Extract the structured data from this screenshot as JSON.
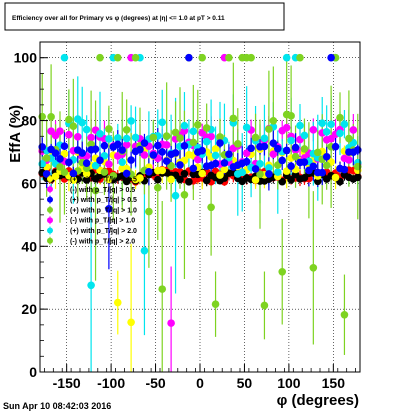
{
  "chart_data": {
    "type": "scatter",
    "title": "Efficiency over all for Primary vs φ (degrees) at |η| <= 1.0 at pT > 0.11",
    "xlabel": "φ (degrees)",
    "ylabel": "EffA (%)",
    "xlim": [
      -180,
      180
    ],
    "ylim": [
      0,
      105
    ],
    "xticks": [
      -150,
      -100,
      -50,
      0,
      50,
      100,
      150
    ],
    "yticks": [
      0,
      20,
      40,
      60,
      80,
      100
    ],
    "grid": true,
    "legend_position": "center-left",
    "timestamp": "Sun Apr 10 08:42:03 2016",
    "series": [
      {
        "name": "(+) with p_T/|q| > 0.5",
        "color": "#ff0000",
        "y_center": 62.5,
        "y_spread": 2,
        "outlier_rate": 0.0,
        "error": 2
      },
      {
        "name": "(-) with p_T/|q| > 0.5",
        "color": "#000000",
        "y_center": 62,
        "y_spread": 1.5,
        "outlier_rate": 0.0,
        "error": 1.5
      },
      {
        "name": "(+) with p_T/|q| > 1.0",
        "color": "#ffff00",
        "y_center": 66,
        "y_spread": 5,
        "outlier_rate": 0.05,
        "error": 4
      },
      {
        "name": "(-) with p_T/|q| > 1.0",
        "color": "#ff00ff",
        "y_center": 72,
        "y_spread": 6,
        "outlier_rate": 0.06,
        "error": 5
      },
      {
        "name": "(+) with p_T/|q| > 2.0",
        "color": "#00e5ee",
        "y_center": 72,
        "y_spread": 9,
        "outlier_rate": 0.2,
        "error": 10
      },
      {
        "name": "(-) with p_T/|q| > 2.0",
        "color": "#7ed321",
        "y_center": 72,
        "y_spread": 10,
        "outlier_rate": 0.3,
        "error": 14
      },
      {
        "name": "(-) with p_T/|q| > 0.5",
        "color": "#0000ff",
        "y_center": 68,
        "y_spread": 5,
        "outlier_rate": 0.05,
        "error": 4
      }
    ],
    "legend_entries": [
      {
        "label": "(+) with p_T/|q| > 0.5",
        "color": "#ffff00"
      },
      {
        "label": "(-) with p_T/|q| > 0.5",
        "color": "#ff00ff"
      },
      {
        "label": "(+) with p_T/|q| > 0.5",
        "color": "#0000ff"
      },
      {
        "label": "(+) with p_T/|q| > 1.0",
        "color": "#7ed321"
      },
      {
        "label": "(-) with p_T/|q| > 1.0",
        "color": "#ff00ff"
      },
      {
        "label": "(+) with p_T/|q| > 2.0",
        "color": "#00e5ee"
      },
      {
        "label": "(-) with p_T/|q| > 2.0",
        "color": "#7ed321"
      }
    ]
  }
}
